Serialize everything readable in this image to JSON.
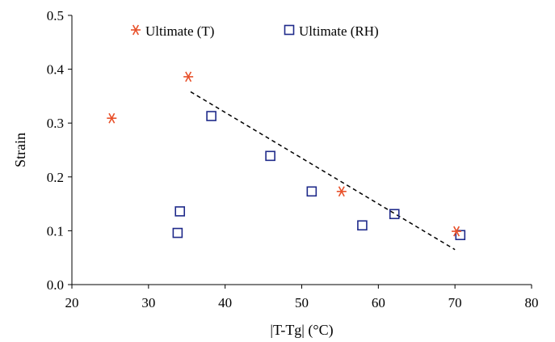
{
  "chart_data": {
    "type": "scatter",
    "title": "",
    "xlabel": "|T-Tg| (°C)",
    "ylabel": "Strain",
    "xlim": [
      20,
      80
    ],
    "ylim": [
      0,
      0.5
    ],
    "xticks": [
      20,
      30,
      40,
      50,
      60,
      70,
      80
    ],
    "yticks": [
      0.0,
      0.1,
      0.2,
      0.3,
      0.4,
      0.5
    ],
    "ytick_labels": [
      "0.0",
      "0.1",
      "0.2",
      "0.3",
      "0.4",
      "0.5"
    ],
    "grid": false,
    "legend_position": "top",
    "series": [
      {
        "name": "Ultimate (T)",
        "marker": "asterisk",
        "color": "#e8502a",
        "points": [
          {
            "x": 25.2,
            "y": 0.309
          },
          {
            "x": 35.2,
            "y": 0.386
          },
          {
            "x": 55.2,
            "y": 0.173
          },
          {
            "x": 70.2,
            "y": 0.099
          }
        ]
      },
      {
        "name": "Ultimate (RH)",
        "marker": "open-square",
        "color": "#1f2a8a",
        "points": [
          {
            "x": 33.8,
            "y": 0.096
          },
          {
            "x": 34.1,
            "y": 0.136
          },
          {
            "x": 38.2,
            "y": 0.313
          },
          {
            "x": 45.9,
            "y": 0.239
          },
          {
            "x": 51.3,
            "y": 0.173
          },
          {
            "x": 57.9,
            "y": 0.11
          },
          {
            "x": 62.1,
            "y": 0.131
          },
          {
            "x": 70.7,
            "y": 0.092
          }
        ]
      }
    ],
    "trendline": {
      "style": "dashed",
      "color": "#000000",
      "x": [
        35.5,
        70.0
      ],
      "y": [
        0.358,
        0.065
      ]
    }
  }
}
